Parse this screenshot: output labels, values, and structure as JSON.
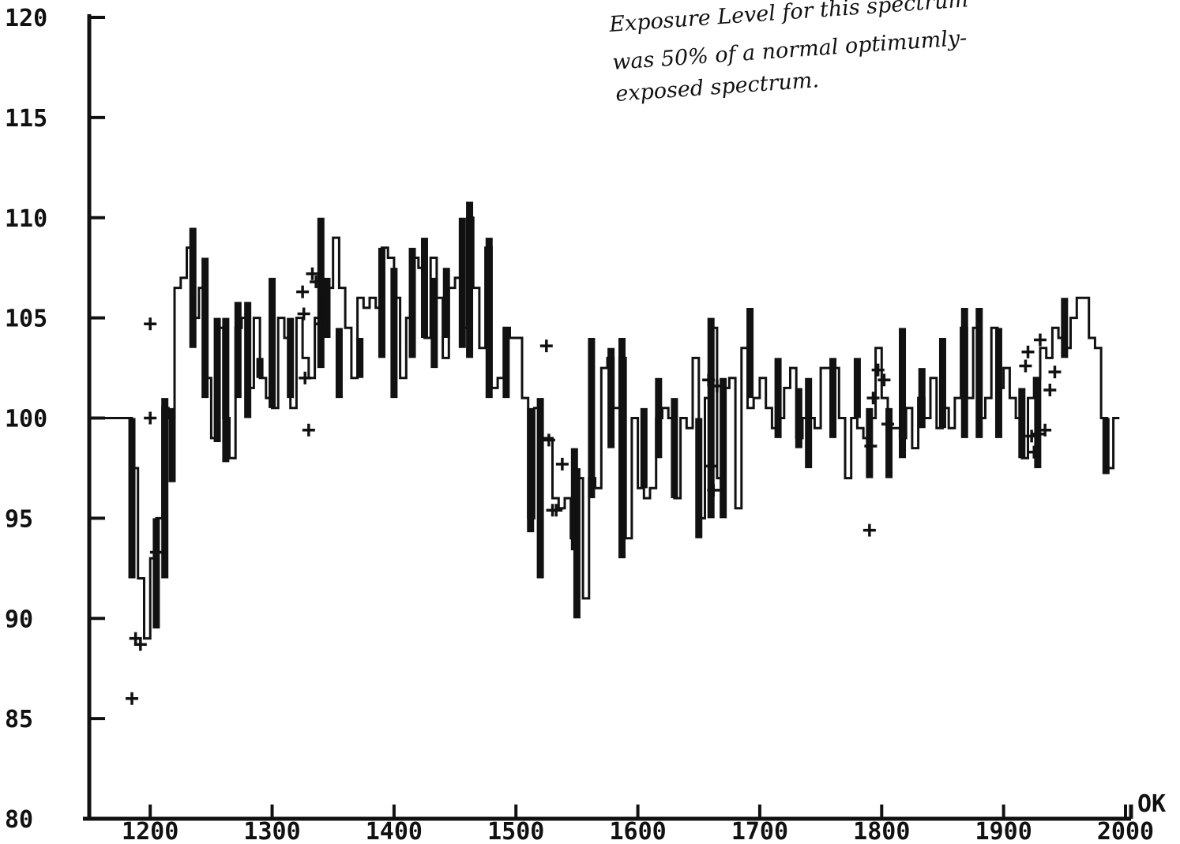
{
  "chart_data": {
    "type": "line",
    "title": "",
    "xlabel": "",
    "ylabel": "",
    "xlim": [
      1150,
      2000
    ],
    "ylim": [
      80,
      120
    ],
    "x_ticks": [
      1200,
      1300,
      1400,
      1500,
      1600,
      1700,
      1800,
      1900,
      2000
    ],
    "x_tick_labels": [
      "1200",
      "1300",
      "1400",
      "1500",
      "1600",
      "1700",
      "1800",
      "1900",
      "2000"
    ],
    "y_ticks": [
      80,
      85,
      90,
      95,
      100,
      105,
      110,
      115,
      120
    ],
    "y_tick_labels": [
      "80",
      "85",
      "90",
      "95",
      "100",
      "105",
      "110",
      "115",
      "120"
    ],
    "x_unit_label": "OK",
    "grid": false,
    "legend": "none",
    "annotation": [
      "Exposure Level for this spectrum",
      "was 50% of a normal optimumly-",
      "exposed spectrum."
    ],
    "series": [
      {
        "x": [
          1150,
          1160,
          1170,
          1180,
          1185,
          1190,
          1195,
          1200,
          1205,
          1210,
          1215,
          1220,
          1225,
          1230,
          1235,
          1240,
          1245,
          1250,
          1255,
          1260,
          1265,
          1270,
          1275,
          1280,
          1285,
          1290,
          1295,
          1300,
          1305,
          1310,
          1315,
          1320,
          1325,
          1330,
          1335,
          1340,
          1345,
          1350,
          1355,
          1360,
          1365,
          1370,
          1375,
          1380,
          1385,
          1390,
          1395,
          1400,
          1405,
          1410,
          1415,
          1420,
          1425,
          1430,
          1435,
          1440,
          1445,
          1450,
          1455,
          1460,
          1465,
          1470,
          1475,
          1480,
          1485,
          1490,
          1495,
          1500,
          1505,
          1510,
          1515,
          1520,
          1525,
          1530,
          1535,
          1540,
          1545,
          1550,
          1555,
          1560,
          1565,
          1570,
          1575,
          1580,
          1585,
          1590,
          1595,
          1600,
          1605,
          1610,
          1615,
          1620,
          1625,
          1630,
          1635,
          1640,
          1645,
          1650,
          1655,
          1660,
          1665,
          1670,
          1675,
          1680,
          1685,
          1690,
          1695,
          1700,
          1705,
          1710,
          1715,
          1720,
          1725,
          1730,
          1735,
          1740,
          1745,
          1750,
          1755,
          1760,
          1765,
          1770,
          1775,
          1780,
          1785,
          1790,
          1795,
          1800,
          1805,
          1810,
          1815,
          1820,
          1825,
          1830,
          1835,
          1840,
          1845,
          1850,
          1855,
          1860,
          1865,
          1870,
          1875,
          1880,
          1885,
          1890,
          1895,
          1900,
          1905,
          1910,
          1915,
          1920,
          1925,
          1930,
          1935,
          1940,
          1945,
          1950,
          1955,
          1960,
          1965,
          1970,
          1975,
          1980,
          1985,
          1990
        ],
        "y": [
          100,
          100,
          100,
          100,
          97.5,
          92,
          89,
          93,
          95,
          100.5,
          100,
          106.5,
          107,
          108.5,
          105,
          106.5,
          102,
          99,
          104.5,
          100,
          98,
          104.5,
          105,
          101.5,
          105,
          102,
          101,
          100.5,
          105,
          104,
          100.5,
          105,
          103,
          102,
          105,
          106.5,
          106.5,
          109,
          106.5,
          104.5,
          102,
          106,
          105.5,
          106,
          105.5,
          108.5,
          108,
          106,
          102,
          105,
          108,
          107.5,
          104,
          108,
          106,
          103,
          106.5,
          107,
          104.5,
          110,
          106.5,
          103.5,
          108.5,
          101.5,
          102,
          104.5,
          104,
          104,
          101,
          95,
          100.5,
          99,
          99,
          96,
          95.5,
          96,
          94,
          97,
          91,
          97,
          96.5,
          102.5,
          103,
          100.5,
          103,
          94,
          100,
          96.5,
          96,
          96.5,
          100,
          100.5,
          100,
          96,
          100,
          99.5,
          103,
          95,
          101,
          104.5,
          97,
          101.5,
          102,
          95.5,
          103.5,
          100.5,
          101,
          102,
          100.5,
          99.5,
          100,
          101.5,
          102.5,
          99,
          100,
          100,
          99.5,
          102.5,
          102.5,
          102.5,
          100,
          97,
          100,
          99.5,
          99,
          100,
          103.5,
          101,
          99.5,
          99.5,
          99,
          100.5,
          98.5,
          101,
          100,
          102,
          99.5,
          100.5,
          99.5,
          101,
          104.5,
          101,
          104.5,
          100,
          101,
          104.5,
          101.5,
          102.5,
          101,
          100,
          98,
          101,
          102,
          103.5,
          103,
          104.5,
          104,
          103.5,
          105,
          106,
          106,
          104,
          103.5,
          100,
          97.5,
          100
        ]
      }
    ],
    "markers": {
      "symbol": "+",
      "points": [
        [
          1185,
          86
        ],
        [
          1188,
          89
        ],
        [
          1192,
          88.7
        ],
        [
          1200,
          104.7
        ],
        [
          1200,
          100
        ],
        [
          1205,
          93.3
        ],
        [
          1325,
          106.3
        ],
        [
          1326,
          105.2
        ],
        [
          1327,
          102
        ],
        [
          1330,
          99.4
        ],
        [
          1333,
          107.2
        ],
        [
          1336,
          106.8
        ],
        [
          1340,
          104.7
        ],
        [
          1525,
          103.6
        ],
        [
          1527,
          98.9
        ],
        [
          1530,
          95.4
        ],
        [
          1533,
          95.4
        ],
        [
          1538,
          97.7
        ],
        [
          1658,
          101.9
        ],
        [
          1660,
          97.6
        ],
        [
          1662,
          96.4
        ],
        [
          1665,
          101.6
        ],
        [
          1790,
          94.4
        ],
        [
          1791,
          98.6
        ],
        [
          1793,
          101
        ],
        [
          1797,
          102.4
        ],
        [
          1802,
          101.9
        ],
        [
          1805,
          99.7
        ],
        [
          1918,
          102.6
        ],
        [
          1920,
          103.3
        ],
        [
          1923,
          99.1
        ],
        [
          1925,
          98.3
        ],
        [
          1928,
          99.2
        ],
        [
          1930,
          103.9
        ],
        [
          1934,
          99.4
        ],
        [
          1938,
          101.4
        ],
        [
          1942,
          102.3
        ]
      ]
    },
    "bars": [
      [
        1185,
        92,
        100
      ],
      [
        1205,
        89.5,
        95
      ],
      [
        1212,
        92,
        101
      ],
      [
        1218,
        96.8,
        100.5
      ],
      [
        1235,
        103.5,
        109.5
      ],
      [
        1245,
        101,
        108
      ],
      [
        1255,
        98.8,
        105
      ],
      [
        1262,
        97.8,
        105
      ],
      [
        1272,
        101,
        105.8
      ],
      [
        1280,
        100,
        105.8
      ],
      [
        1290,
        102,
        103
      ],
      [
        1300,
        100.5,
        107
      ],
      [
        1315,
        101,
        105
      ],
      [
        1340,
        102.5,
        110
      ],
      [
        1345,
        104,
        107
      ],
      [
        1355,
        101,
        104.5
      ],
      [
        1372,
        102,
        104
      ],
      [
        1390,
        103,
        108.5
      ],
      [
        1400,
        101,
        107.5
      ],
      [
        1415,
        103,
        108.5
      ],
      [
        1425,
        104,
        109
      ],
      [
        1433,
        102.5,
        107
      ],
      [
        1443,
        104,
        107.5
      ],
      [
        1456,
        103.5,
        110
      ],
      [
        1462,
        103,
        110.8
      ],
      [
        1478,
        101,
        109
      ],
      [
        1492,
        101,
        104.5
      ],
      [
        1512,
        94.3,
        100.5
      ],
      [
        1520,
        92,
        101
      ],
      [
        1550,
        90,
        97.5
      ],
      [
        1548,
        93.4,
        98.5
      ],
      [
        1562,
        96,
        104
      ],
      [
        1578,
        98.5,
        103.5
      ],
      [
        1587,
        93,
        104
      ],
      [
        1605,
        96.5,
        100.5
      ],
      [
        1617,
        98,
        102
      ],
      [
        1630,
        96,
        101
      ],
      [
        1650,
        94,
        100
      ],
      [
        1660,
        95,
        105
      ],
      [
        1670,
        95,
        102
      ],
      [
        1692,
        101,
        105.5
      ],
      [
        1715,
        99,
        103
      ],
      [
        1732,
        98.5,
        101.5
      ],
      [
        1740,
        97.5,
        102
      ],
      [
        1760,
        99,
        103
      ],
      [
        1780,
        100,
        103
      ],
      [
        1790,
        97,
        100.5
      ],
      [
        1806,
        97,
        100.5
      ],
      [
        1817,
        98,
        104.5
      ],
      [
        1833,
        99.5,
        102.5
      ],
      [
        1850,
        99.5,
        104
      ],
      [
        1868,
        99,
        105.5
      ],
      [
        1880,
        99,
        105.5
      ],
      [
        1896,
        99,
        104.5
      ],
      [
        1915,
        98,
        101.5
      ],
      [
        1928,
        97.5,
        102
      ],
      [
        1950,
        103,
        106
      ],
      [
        1984,
        97.2,
        100
      ]
    ]
  }
}
